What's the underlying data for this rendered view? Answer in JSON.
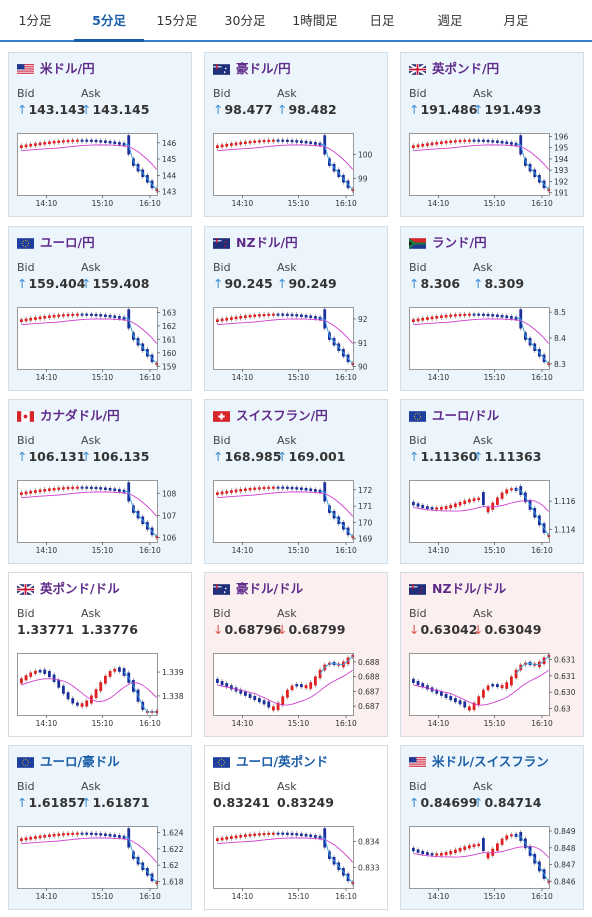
{
  "tabs": [
    {
      "label": "1分足",
      "active": false
    },
    {
      "label": "5分足",
      "active": true
    },
    {
      "label": "15分足",
      "active": false
    },
    {
      "label": "30分足",
      "active": false
    },
    {
      "label": "1時間足",
      "active": false
    },
    {
      "label": "日足",
      "active": false
    },
    {
      "label": "週足",
      "active": false
    },
    {
      "label": "月足",
      "active": false
    }
  ],
  "labels": {
    "bid": "Bid",
    "ask": "Ask"
  },
  "colors": {
    "purple_title": "#5f2b8a",
    "blue_title": "#1a5ea8",
    "up_arrow": "#3b8fd6",
    "down_arrow": "#e0524c",
    "candle_up": "#e02020",
    "candle_down": "#1a2f9c",
    "ma_line": "#d040d0",
    "tick_line": "#3aa0e0"
  },
  "cards": [
    {
      "name": "米ドル/円",
      "flags": [
        "us-flag",
        "jp-flag"
      ],
      "dir": "up",
      "bid": "143.143",
      "ask": "143.145",
      "title_color": "purple",
      "chart_data": {
        "type": "candlestick",
        "shape": "drop",
        "y_ticks": [
          "146",
          "145",
          "144",
          "143"
        ],
        "ylim": [
          142.8,
          146.6
        ],
        "x_ticks": [
          "14:10",
          "15:10",
          "16:10"
        ]
      }
    },
    {
      "name": "豪ドル/円",
      "flags": [
        "au-flag",
        "jp-flag"
      ],
      "dir": "up",
      "bid": "98.477",
      "ask": "98.482",
      "title_color": "purple",
      "chart_data": {
        "type": "candlestick",
        "shape": "drop",
        "y_ticks": [
          "100",
          "99"
        ],
        "ylim": [
          98.3,
          100.9
        ],
        "x_ticks": [
          "14:10",
          "15:10",
          "16:10"
        ]
      }
    },
    {
      "name": "英ポンド/円",
      "flags": [
        "gb-flag",
        "jp-flag"
      ],
      "dir": "up",
      "bid": "191.486",
      "ask": "191.493",
      "title_color": "purple",
      "chart_data": {
        "type": "candlestick",
        "shape": "drop",
        "y_ticks": [
          "196",
          "195",
          "194",
          "193",
          "192",
          "191"
        ],
        "ylim": [
          190.8,
          196.3
        ],
        "x_ticks": [
          "14:10",
          "15:10",
          "16:10"
        ]
      }
    },
    {
      "name": "ユーロ/円",
      "flags": [
        "eu-flag",
        "jp-flag"
      ],
      "dir": "up",
      "bid": "159.404",
      "ask": "159.408",
      "title_color": "purple",
      "chart_data": {
        "type": "candlestick",
        "shape": "drop",
        "y_ticks": [
          "163",
          "162",
          "161",
          "160",
          "159"
        ],
        "ylim": [
          158.8,
          163.4
        ],
        "x_ticks": [
          "14:10",
          "15:10",
          "16:10"
        ]
      }
    },
    {
      "name": "NZドル/円",
      "flags": [
        "nz-flag",
        "jp-flag"
      ],
      "dir": "up",
      "bid": "90.245",
      "ask": "90.249",
      "title_color": "purple",
      "chart_data": {
        "type": "candlestick",
        "shape": "drop",
        "y_ticks": [
          "92",
          "91",
          "90"
        ],
        "ylim": [
          89.9,
          92.5
        ],
        "x_ticks": [
          "14:10",
          "15:10",
          "16:10"
        ]
      }
    },
    {
      "name": "ランド/円",
      "flags": [
        "za-flag",
        "jp-flag"
      ],
      "dir": "up",
      "bid": "8.306",
      "ask": "8.309",
      "title_color": "purple",
      "chart_data": {
        "type": "candlestick",
        "shape": "drop",
        "y_ticks": [
          "8.5",
          "8.4",
          "8.3"
        ],
        "ylim": [
          8.28,
          8.52
        ],
        "x_ticks": [
          "14:10",
          "15:10",
          "16:10"
        ]
      }
    },
    {
      "name": "カナダドル/円",
      "flags": [
        "ca-flag",
        "jp-flag"
      ],
      "dir": "up",
      "bid": "106.131",
      "ask": "106.135",
      "title_color": "purple",
      "chart_data": {
        "type": "candlestick",
        "shape": "drop",
        "y_ticks": [
          "108",
          "107",
          "106"
        ],
        "ylim": [
          105.8,
          108.6
        ],
        "x_ticks": [
          "14:10",
          "15:10",
          "16:10"
        ]
      }
    },
    {
      "name": "スイスフラン/円",
      "flags": [
        "ch-flag",
        "jp-flag"
      ],
      "dir": "up",
      "bid": "168.985",
      "ask": "169.001",
      "title_color": "purple",
      "chart_data": {
        "type": "candlestick",
        "shape": "drop",
        "y_ticks": [
          "172",
          "171",
          "170",
          "169"
        ],
        "ylim": [
          168.8,
          172.6
        ],
        "x_ticks": [
          "14:10",
          "15:10",
          "16:10"
        ]
      }
    },
    {
      "name": "ユーロ/ドル",
      "flags": [
        "eu-flag",
        "us-flag"
      ],
      "dir": "up",
      "bid": "1.11360",
      "ask": "1.11363",
      "title_color": "purple",
      "chart_data": {
        "type": "candlestick",
        "shape": "rise_drop",
        "y_ticks": [
          "1.116",
          "1.114"
        ],
        "ylim": [
          1.1131,
          1.1175
        ],
        "x_ticks": [
          "14:10",
          "15:10",
          "16:10"
        ]
      }
    },
    {
      "name": "英ポンド/ドル",
      "flags": [
        "gb-flag",
        "us-flag"
      ],
      "dir": "flat",
      "bid": "1.33771",
      "ask": "1.33776",
      "title_color": "purple",
      "chart_data": {
        "type": "candlestick",
        "shape": "wave",
        "y_ticks": [
          "1.339",
          "1.338"
        ],
        "ylim": [
          1.3372,
          1.3398
        ],
        "x_ticks": [
          "14:10",
          "15:10",
          "16:10"
        ]
      }
    },
    {
      "name": "豪ドル/ドル",
      "flags": [
        "au-flag",
        "us-flag"
      ],
      "dir": "down",
      "bid": "0.68796",
      "ask": "0.68799",
      "title_color": "purple",
      "chart_data": {
        "type": "candlestick",
        "shape": "dip_rise",
        "y_ticks": [
          "0.6885",
          "0.688",
          "0.6875",
          "0.687"
        ],
        "ylim": [
          0.6867,
          0.6888
        ],
        "x_ticks": [
          "14:10",
          "15:10",
          "16:10"
        ]
      }
    },
    {
      "name": "NZドル/ドル",
      "flags": [
        "nz-flag",
        "us-flag"
      ],
      "dir": "down",
      "bid": "0.63042",
      "ask": "0.63049",
      "title_color": "purple",
      "chart_data": {
        "type": "candlestick",
        "shape": "dip_rise",
        "y_ticks": [
          "0.6315",
          "0.631",
          "0.6305",
          "0.63"
        ],
        "ylim": [
          0.6298,
          0.6317
        ],
        "x_ticks": [
          "14:10",
          "15:10",
          "16:10"
        ]
      }
    },
    {
      "name": "ユーロ/豪ドル",
      "flags": [
        "eu-flag",
        "au-flag"
      ],
      "dir": "up",
      "bid": "1.61857",
      "ask": "1.61871",
      "title_color": "blue",
      "chart_data": {
        "type": "candlestick",
        "shape": "drop",
        "y_ticks": [
          "1.624",
          "1.622",
          "1.62",
          "1.618"
        ],
        "ylim": [
          1.6172,
          1.6248
        ],
        "x_ticks": [
          "14:10",
          "15:10",
          "16:10"
        ]
      }
    },
    {
      "name": "ユーロ/英ポンド",
      "flags": [
        "eu-flag",
        "gb-flag"
      ],
      "dir": "flat",
      "bid": "0.83241",
      "ask": "0.83249",
      "title_color": "blue",
      "chart_data": {
        "type": "candlestick",
        "shape": "drop",
        "y_ticks": [
          "0.834",
          "0.833"
        ],
        "ylim": [
          0.8322,
          0.8346
        ],
        "x_ticks": [
          "14:10",
          "15:10",
          "16:10"
        ]
      }
    },
    {
      "name": "米ドル/スイスフラン",
      "flags": [
        "us-flag",
        "ch-flag"
      ],
      "dir": "up",
      "bid": "0.84699",
      "ask": "0.84714",
      "title_color": "blue",
      "chart_data": {
        "type": "candlestick",
        "shape": "rise_drop",
        "y_ticks": [
          "0.849",
          "0.848",
          "0.847",
          "0.846"
        ],
        "ylim": [
          0.8456,
          0.8493
        ],
        "x_ticks": [
          "14:10",
          "15:10",
          "16:10"
        ]
      }
    }
  ]
}
